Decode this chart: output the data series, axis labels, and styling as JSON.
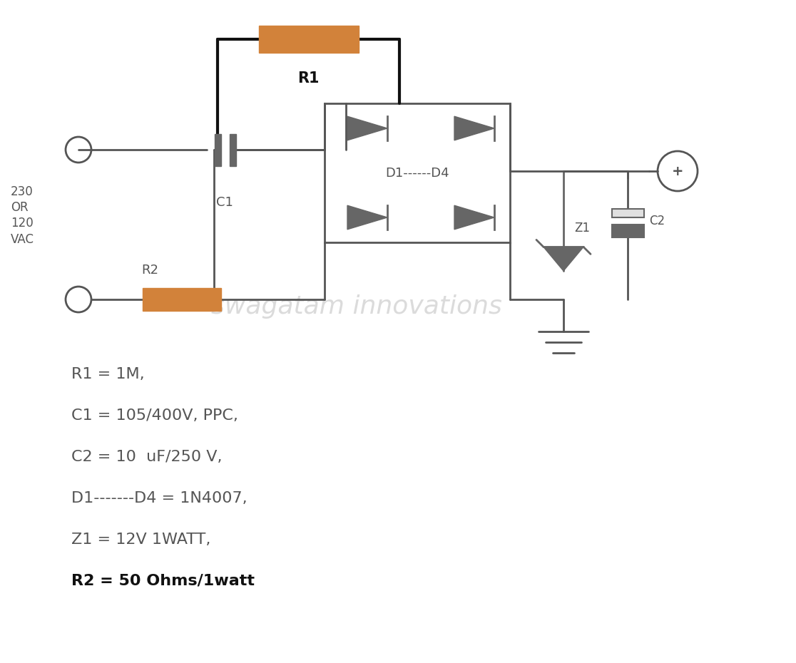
{
  "bg_color": "#ffffff",
  "line_color": "#555555",
  "thick_line_color": "#111111",
  "resistor_color": "#D2823A",
  "component_color": "#666666",
  "text_color": "#555555",
  "bold_text_color": "#111111",
  "watermark_color": "#cccccc",
  "watermark_text": "swagatam innovations",
  "calc_lines": [
    "R1 = 1M,",
    "C1 = 105/400V, PPC,",
    "C2 = 10  uF/250 V,",
    "D1-------D4 = 1N4007,",
    "Z1 = 12V 1WATT,",
    "R2 = 50 Ohms/1watt"
  ]
}
